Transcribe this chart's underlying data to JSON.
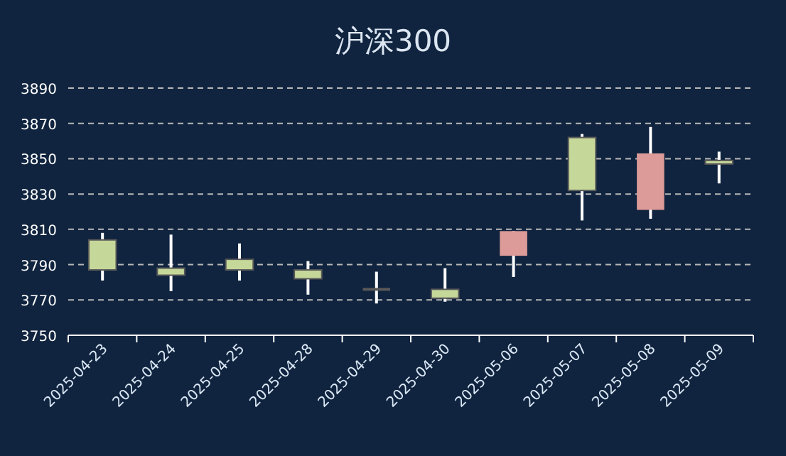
{
  "chart_data": {
    "type": "candlestick",
    "title": "沪深300",
    "categories": [
      "2025-04-23",
      "2025-04-24",
      "2025-04-25",
      "2025-04-28",
      "2025-04-29",
      "2025-04-30",
      "2025-05-06",
      "2025-05-07",
      "2025-05-08",
      "2025-05-09"
    ],
    "ohlc": [
      [
        3804,
        3808,
        3781,
        3787
      ],
      [
        3788,
        3807,
        3775,
        3784
      ],
      [
        3793,
        3802,
        3781,
        3787
      ],
      [
        3787,
        3792,
        3773,
        3782
      ],
      [
        3776,
        3786,
        3768,
        3776
      ],
      [
        3776,
        3788,
        3769,
        3771
      ],
      [
        3795,
        3809,
        3783,
        3809
      ],
      [
        3862,
        3864,
        3815,
        3832
      ],
      [
        3821,
        3868,
        3816,
        3853
      ],
      [
        3849,
        3854,
        3836,
        3847
      ]
    ],
    "colors": [
      "#c5d89a",
      "#c5d89a",
      "#c5d89a",
      "#c5d89a",
      "#595959",
      "#c5d89a",
      "#dc9a98",
      "#c5d89a",
      "#dc9a98",
      "#c5d89a"
    ],
    "ylim": [
      3750,
      3890
    ],
    "yticks": [
      3750,
      3770,
      3790,
      3810,
      3830,
      3850,
      3870,
      3890
    ],
    "grid": "y"
  }
}
